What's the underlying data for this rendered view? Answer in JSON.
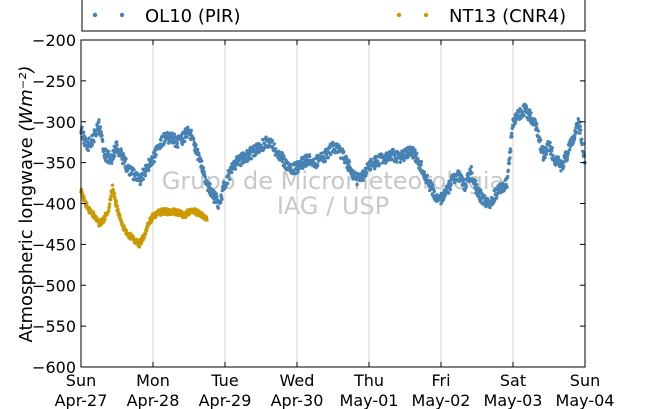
{
  "chart_data": {
    "type": "scatter",
    "title": "",
    "xlabel": "",
    "ylabel": "Atmospheric longwave (Wm⁻²)",
    "ylabel_text": "Atmospheric longwave",
    "ylabel_unit": "(Wm⁻²)",
    "ylim": [
      -600,
      -200
    ],
    "yticks": [
      -200,
      -250,
      -300,
      -350,
      -400,
      -450,
      -500,
      -550,
      -600
    ],
    "ytick_labels": [
      "−200",
      "−250",
      "−300",
      "−350",
      "−400",
      "−450",
      "−500",
      "−550",
      "−600"
    ],
    "xlim": [
      "2014-04-27",
      "2014-05-04"
    ],
    "xticks": [
      {
        "day": "Sun",
        "date": "Apr-27"
      },
      {
        "day": "Mon",
        "date": "Apr-28"
      },
      {
        "day": "Tue",
        "date": "Apr-29"
      },
      {
        "day": "Wed",
        "date": "Apr-30"
      },
      {
        "day": "Thu",
        "date": "May-01"
      },
      {
        "day": "Fri",
        "date": "May-02"
      },
      {
        "day": "Sat",
        "date": "May-03"
      },
      {
        "day": "Sun",
        "date": "May-04"
      }
    ],
    "grid": "vertical",
    "legend_position": "top",
    "watermark": [
      "Grupo de Micrometeorologia",
      "IAG / USP"
    ],
    "series": [
      {
        "name": "OL10 (PIR)",
        "color": "#4682b4",
        "x": [
          "2014-04-27T00:00",
          "2014-04-27T02:00",
          "2014-04-27T04:00",
          "2014-04-27T06:00",
          "2014-04-27T08:00",
          "2014-04-27T10:00",
          "2014-04-27T12:00",
          "2014-04-27T14:00",
          "2014-04-27T16:00",
          "2014-04-27T18:00",
          "2014-04-27T20:00",
          "2014-04-27T22:00",
          "2014-04-28T00:00",
          "2014-04-28T02:00",
          "2014-04-28T04:00",
          "2014-04-28T06:00",
          "2014-04-28T08:00",
          "2014-04-28T10:00",
          "2014-04-28T12:00",
          "2014-04-28T14:00",
          "2014-04-28T16:00",
          "2014-04-28T18:00",
          "2014-04-28T20:00",
          "2014-04-28T22:00",
          "2014-04-29T00:00",
          "2014-04-29T02:00",
          "2014-04-29T04:00",
          "2014-04-29T06:00",
          "2014-04-29T08:00",
          "2014-04-29T10:00",
          "2014-04-29T12:00",
          "2014-04-29T14:00",
          "2014-04-29T16:00",
          "2014-04-29T18:00",
          "2014-04-29T20:00",
          "2014-04-29T22:00",
          "2014-04-30T00:00",
          "2014-04-30T02:00",
          "2014-04-30T04:00",
          "2014-04-30T06:00",
          "2014-04-30T08:00",
          "2014-04-30T10:00",
          "2014-04-30T12:00",
          "2014-04-30T14:00",
          "2014-04-30T16:00",
          "2014-04-30T18:00",
          "2014-04-30T20:00",
          "2014-04-30T22:00",
          "2014-05-01T00:00",
          "2014-05-01T02:00",
          "2014-05-01T04:00",
          "2014-05-01T06:00",
          "2014-05-01T08:00",
          "2014-05-01T10:00",
          "2014-05-01T12:00",
          "2014-05-01T14:00",
          "2014-05-01T16:00",
          "2014-05-01T18:00",
          "2014-05-01T20:00",
          "2014-05-01T22:00",
          "2014-05-02T00:00",
          "2014-05-02T02:00",
          "2014-05-02T04:00",
          "2014-05-02T06:00",
          "2014-05-02T08:00",
          "2014-05-02T10:00",
          "2014-05-02T12:00",
          "2014-05-02T14:00",
          "2014-05-02T16:00",
          "2014-05-02T18:00",
          "2014-05-02T20:00",
          "2014-05-02T22:00",
          "2014-05-03T00:00",
          "2014-05-03T02:00",
          "2014-05-03T04:00",
          "2014-05-03T06:00",
          "2014-05-03T08:00",
          "2014-05-03T10:00",
          "2014-05-03T12:00",
          "2014-05-03T14:00",
          "2014-05-03T16:00",
          "2014-05-03T18:00",
          "2014-05-03T20:00",
          "2014-05-03T22:00",
          "2014-05-04T00:00"
        ],
        "y": [
          -310,
          -330,
          -320,
          -305,
          -340,
          -345,
          -330,
          -345,
          -360,
          -365,
          -370,
          -355,
          -345,
          -330,
          -320,
          -318,
          -325,
          -320,
          -310,
          -330,
          -350,
          -375,
          -390,
          -400,
          -375,
          -360,
          -350,
          -345,
          -340,
          -335,
          -330,
          -325,
          -330,
          -340,
          -350,
          -360,
          -355,
          -350,
          -345,
          -350,
          -345,
          -340,
          -330,
          -335,
          -345,
          -360,
          -370,
          -365,
          -355,
          -350,
          -345,
          -345,
          -340,
          -345,
          -340,
          -335,
          -345,
          -360,
          -375,
          -390,
          -395,
          -385,
          -370,
          -365,
          -380,
          -360,
          -385,
          -395,
          -400,
          -390,
          -380,
          -375,
          -300,
          -290,
          -285,
          -295,
          -310,
          -340,
          -330,
          -345,
          -355,
          -340,
          -320,
          -300,
          -350
        ]
      },
      {
        "name": "NT13 (CNR4)",
        "color": "#cc9900",
        "x": [
          "2014-04-27T00:00",
          "2014-04-27T01:30",
          "2014-04-27T03:00",
          "2014-04-27T04:30",
          "2014-04-27T06:00",
          "2014-04-27T07:30",
          "2014-04-27T09:00",
          "2014-04-27T10:30",
          "2014-04-27T12:00",
          "2014-04-27T13:30",
          "2014-04-27T15:00",
          "2014-04-27T16:30",
          "2014-04-27T18:00",
          "2014-04-27T19:30",
          "2014-04-27T21:00",
          "2014-04-27T22:30",
          "2014-04-28T00:00",
          "2014-04-28T01:30",
          "2014-04-28T03:00",
          "2014-04-28T04:30",
          "2014-04-28T06:00",
          "2014-04-28T07:30",
          "2014-04-28T09:00",
          "2014-04-28T10:30",
          "2014-04-28T12:00",
          "2014-04-28T13:30",
          "2014-04-28T15:00",
          "2014-04-28T16:30",
          "2014-04-28T18:00"
        ],
        "y": [
          -385,
          -400,
          -410,
          -415,
          -425,
          -420,
          -410,
          -380,
          -405,
          -425,
          -435,
          -440,
          -445,
          -450,
          -440,
          -425,
          -415,
          -412,
          -410,
          -410,
          -410,
          -410,
          -412,
          -415,
          -410,
          -408,
          -412,
          -415,
          -420
        ]
      }
    ]
  }
}
